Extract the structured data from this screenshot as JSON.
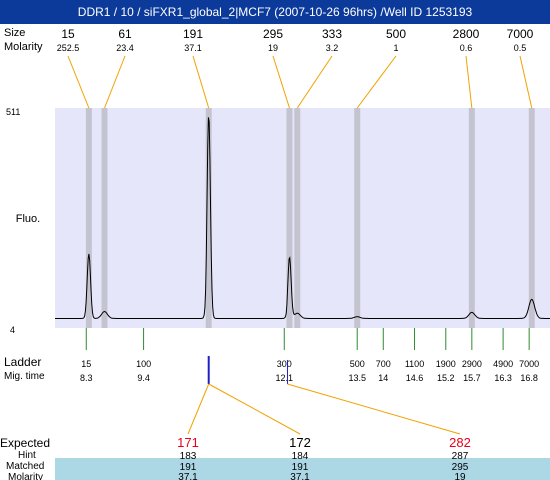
{
  "title": "DDR1 / 10 / siFXR1_global_2|MCF7 (2007-10-26 96hrs) /Well ID 1253193",
  "colors": {
    "title_bg": "#0b3a9b",
    "plot_bg": "#e6e6fa",
    "peak_band": "#c4c4d0",
    "connector": "#f2a100",
    "ladder_tick": "#2e8b2e",
    "expected_red": "#e8001c",
    "matched_row_bg": "#acd8e6",
    "selected_marker": "#1f1fc8"
  },
  "header_rows": {
    "size_label": "Size",
    "molarity_label": "Molarity"
  },
  "peaks": [
    {
      "size": "15",
      "molarity": "252.5"
    },
    {
      "size": "61",
      "molarity": "23.4"
    },
    {
      "size": "191",
      "molarity": "37.1"
    },
    {
      "size": "295",
      "molarity": "19"
    },
    {
      "size": "333",
      "molarity": "3.2"
    },
    {
      "size": "500",
      "molarity": "1"
    },
    {
      "size": "2800",
      "molarity": "0.6"
    },
    {
      "size": "7000",
      "molarity": "0.5"
    }
  ],
  "axis": {
    "y_label": "Fluo.",
    "y_max": "511",
    "y_min": "4"
  },
  "ladder": {
    "label": "Ladder",
    "mig_label": "Mig. time",
    "items": [
      {
        "size": "15",
        "time": "8.3"
      },
      {
        "size": "100",
        "time": "9.4"
      },
      {
        "size": "300",
        "time": "12.1"
      },
      {
        "size": "500",
        "time": "13.5"
      },
      {
        "size": "700",
        "time": "14"
      },
      {
        "size": "1100",
        "time": "14.6"
      },
      {
        "size": "1900",
        "time": "15.2"
      },
      {
        "size": "2900",
        "time": "15.7"
      },
      {
        "size": "4900",
        "time": "16.3"
      },
      {
        "size": "7000",
        "time": "16.8"
      }
    ]
  },
  "table": {
    "labels": {
      "expected": "Expected",
      "hint": "Hint",
      "matched": "Matched",
      "molarity": "Molarity"
    },
    "columns": [
      {
        "expected": "171",
        "expected_color": "#e8001c",
        "hint": "183",
        "matched": "191",
        "molarity": "37.1"
      },
      {
        "expected": "172",
        "expected_color": "#000000",
        "hint": "184",
        "matched": "191",
        "molarity": "37.1"
      },
      {
        "expected": "282",
        "expected_color": "#e8001c",
        "hint": "287",
        "matched": "295",
        "molarity": "19"
      }
    ]
  },
  "chart_data": {
    "type": "line",
    "title": "DDR1 / 10 / siFXR1_global_2|MCF7 (2007-10-26 96hrs) /Well ID 1253193",
    "ylabel": "Fluo.",
    "ylim": [
      4,
      511
    ],
    "xlim": [
      7.7,
      17.2
    ],
    "x_unit": "migration time",
    "grid": false,
    "baseline": 26,
    "peaks": [
      {
        "x": 8.35,
        "y": 175,
        "size": 15
      },
      {
        "x": 8.65,
        "y": 42,
        "size": 61
      },
      {
        "x": 10.65,
        "y": 496,
        "size": 191
      },
      {
        "x": 12.2,
        "y": 168,
        "size": 295
      },
      {
        "x": 12.35,
        "y": 38,
        "size": 333
      },
      {
        "x": 13.5,
        "y": 30,
        "size": 500
      },
      {
        "x": 15.7,
        "y": 40,
        "size": 2800
      },
      {
        "x": 16.85,
        "y": 70,
        "size": 7000
      }
    ],
    "dips": [
      {
        "x": 10.6,
        "y": 4
      },
      {
        "x": 12.15,
        "y": 14
      }
    ],
    "ladder_x": [
      8.3,
      9.4,
      12.1,
      13.5,
      14,
      14.6,
      15.2,
      15.7,
      16.3,
      16.8
    ],
    "ladder_sizes": [
      15,
      100,
      300,
      500,
      700,
      1100,
      1900,
      2900,
      4900,
      7000
    ]
  }
}
